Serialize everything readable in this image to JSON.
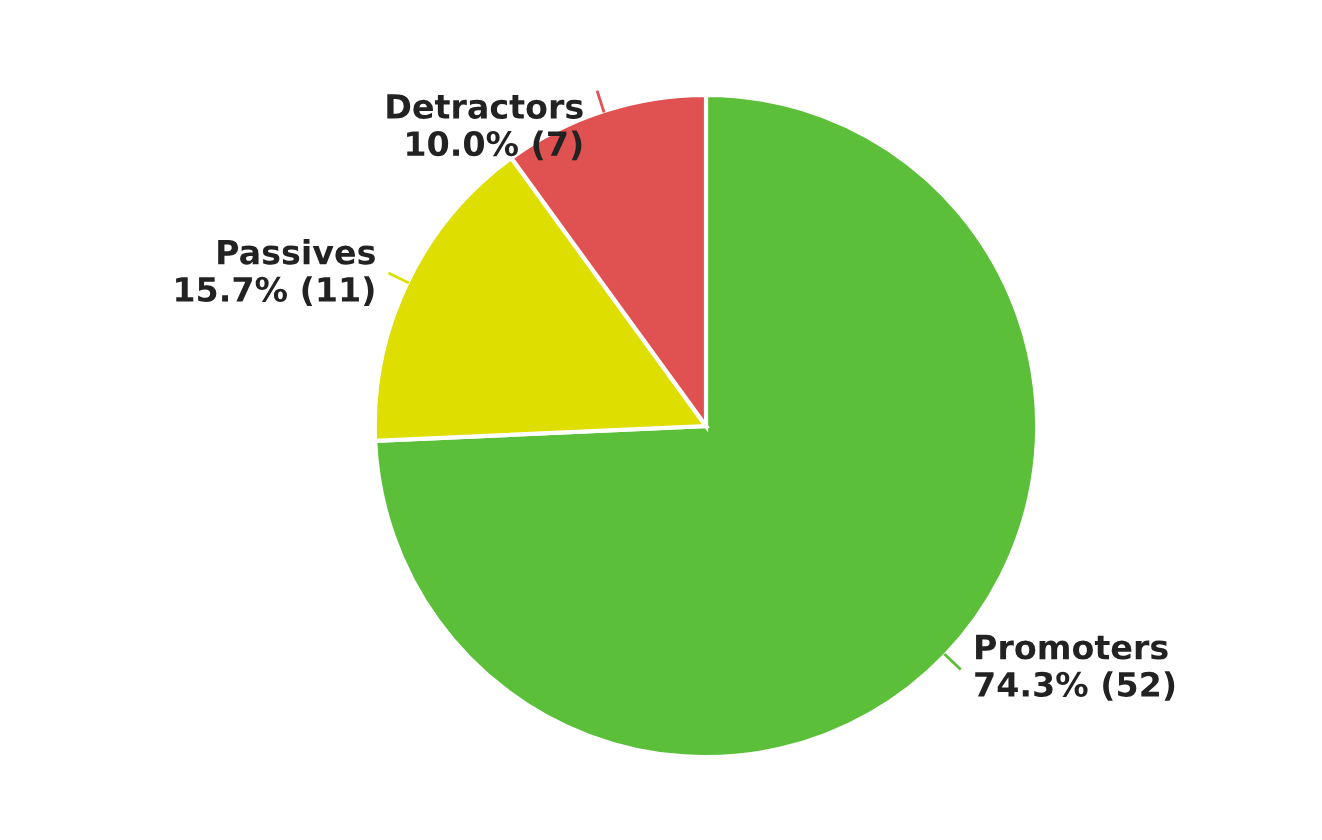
{
  "chart_data": {
    "type": "pie",
    "categories": [
      "Promoters",
      "Passives",
      "Detractors"
    ],
    "values": [
      52,
      11,
      7
    ],
    "colors": [
      "#5bbf3a",
      "#dede00",
      "#e05252"
    ],
    "value_labels": [
      "74.3% (52)",
      "15.7% (11)",
      "10.0% (7)"
    ],
    "legend": false
  }
}
